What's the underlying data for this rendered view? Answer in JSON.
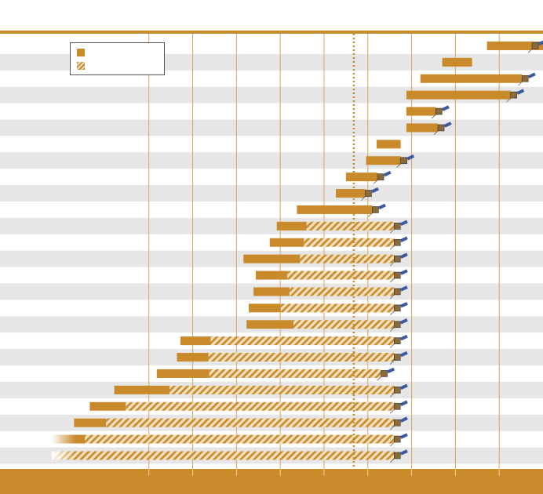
{
  "title": "",
  "legend": {
    "prime_label": "",
    "extended_label": ""
  },
  "colors": {
    "mission_bar": "#c98a2b",
    "extended_hatch_light": "#f3dfbd",
    "row_stripe": "#e6e6e6",
    "gridline": "#d9a35a",
    "current_marker": "#c98a2b"
  },
  "chart_data": {
    "type": "bar",
    "orientation": "horizontal",
    "title": "",
    "xlabel": "",
    "ylabel": "",
    "xlim": [
      0,
      12.4
    ],
    "x_tick_positions": [
      3.4,
      4.4,
      5.4,
      6.4,
      7.4,
      8.4,
      9.4,
      10.4,
      11.4
    ],
    "x_tick_labels": [],
    "current_marker_x": 8.08,
    "grid": true,
    "legend_position": "top-left",
    "series": [
      {
        "key": "prime",
        "style": "solid"
      },
      {
        "key": "extended",
        "style": "hatched"
      }
    ],
    "missions": [
      {
        "start": 11.12,
        "prime_end": 12.4,
        "extended_end": 12.4,
        "fade_start": false,
        "icon": "spacecraft-icon"
      },
      {
        "start": 10.1,
        "prime_end": 10.78,
        "extended_end": 10.78,
        "fade_start": false,
        "icon": "none"
      },
      {
        "start": 9.6,
        "prime_end": 11.92,
        "extended_end": 11.92,
        "fade_start": false,
        "icon": "spacecraft-icon"
      },
      {
        "start": 9.28,
        "prime_end": 11.66,
        "extended_end": 11.66,
        "fade_start": false,
        "icon": "spacecraft-icon"
      },
      {
        "start": 9.28,
        "prime_end": 9.95,
        "extended_end": 9.95,
        "fade_start": false,
        "icon": "spacecraft-icon"
      },
      {
        "start": 9.28,
        "prime_end": 10.0,
        "extended_end": 10.0,
        "fade_start": false,
        "icon": "spacecraft-icon"
      },
      {
        "start": 8.6,
        "prime_end": 9.15,
        "extended_end": 9.15,
        "fade_start": false,
        "icon": "none"
      },
      {
        "start": 8.36,
        "prime_end": 9.15,
        "extended_end": 9.15,
        "fade_start": false,
        "icon": "spacecraft-icon"
      },
      {
        "start": 7.9,
        "prime_end": 8.62,
        "extended_end": 8.62,
        "fade_start": false,
        "icon": "spacecraft-icon"
      },
      {
        "start": 7.67,
        "prime_end": 8.34,
        "extended_end": 8.34,
        "fade_start": false,
        "icon": "spacecraft-icon"
      },
      {
        "start": 6.78,
        "prime_end": 8.5,
        "extended_end": 8.5,
        "fade_start": false,
        "icon": "spacecraft-icon"
      },
      {
        "start": 6.32,
        "prime_end": 7.0,
        "extended_end": 9.0,
        "fade_start": false,
        "icon": "spacecraft-icon"
      },
      {
        "start": 6.16,
        "prime_end": 6.94,
        "extended_end": 9.0,
        "fade_start": false,
        "icon": "spacecraft-icon"
      },
      {
        "start": 5.56,
        "prime_end": 6.85,
        "extended_end": 9.0,
        "fade_start": false,
        "icon": "spacecraft-icon"
      },
      {
        "start": 5.84,
        "prime_end": 6.56,
        "extended_end": 9.0,
        "fade_start": false,
        "icon": "spacecraft-icon"
      },
      {
        "start": 5.79,
        "prime_end": 6.61,
        "extended_end": 9.0,
        "fade_start": false,
        "icon": "spacecraft-icon"
      },
      {
        "start": 5.68,
        "prime_end": 6.41,
        "extended_end": 9.0,
        "fade_start": false,
        "icon": "spacecraft-icon"
      },
      {
        "start": 5.63,
        "prime_end": 6.7,
        "extended_end": 9.0,
        "fade_start": false,
        "icon": "spacecraft-icon"
      },
      {
        "start": 4.12,
        "prime_end": 4.81,
        "extended_end": 9.0,
        "fade_start": false,
        "icon": "spacecraft-icon"
      },
      {
        "start": 4.04,
        "prime_end": 4.76,
        "extended_end": 9.0,
        "fade_start": false,
        "icon": "spacecraft-icon"
      },
      {
        "start": 3.58,
        "prime_end": 4.78,
        "extended_end": 8.7,
        "fade_start": false,
        "icon": "spacecraft-icon"
      },
      {
        "start": 2.61,
        "prime_end": 3.87,
        "extended_end": 9.0,
        "fade_start": false,
        "icon": "spacecraft-icon"
      },
      {
        "start": 2.05,
        "prime_end": 2.87,
        "extended_end": 9.0,
        "fade_start": false,
        "icon": "spacecraft-icon"
      },
      {
        "start": 1.69,
        "prime_end": 2.42,
        "extended_end": 9.0,
        "fade_start": false,
        "icon": "spacecraft-icon"
      },
      {
        "start": 1.2,
        "prime_end": 1.94,
        "extended_end": 9.0,
        "fade_start": true,
        "icon": "spacecraft-icon"
      },
      {
        "start": 1.2,
        "prime_end": 1.2,
        "extended_end": 9.0,
        "fade_start": true,
        "icon": "spacecraft-icon"
      }
    ]
  }
}
